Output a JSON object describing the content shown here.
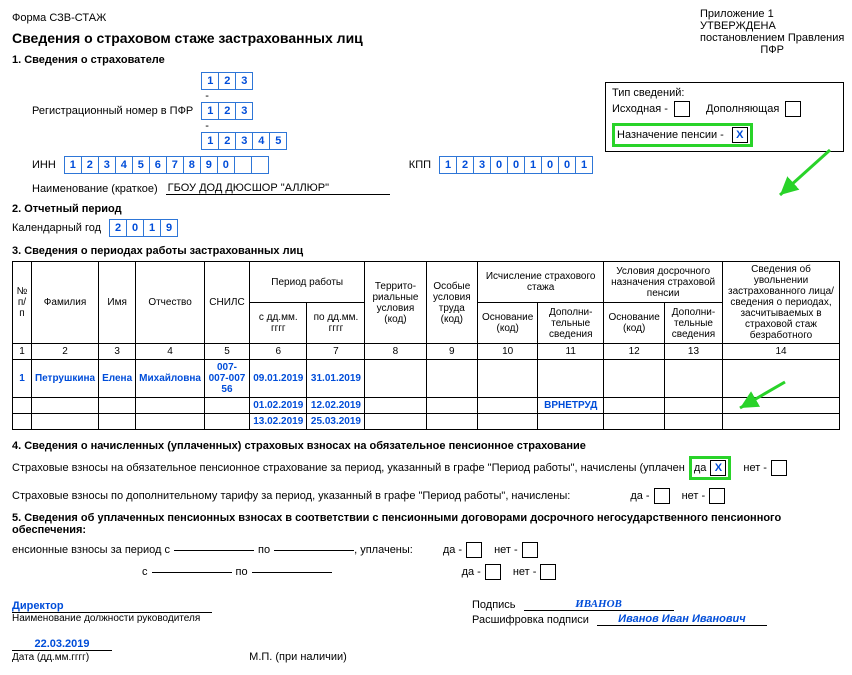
{
  "header": {
    "form": "Форма СЗВ-СТАЖ",
    "title": "Сведения о страховом стаже застрахованных лиц",
    "appendix": "Приложение 1",
    "approved_line1": "УТВЕРЖДЕНА",
    "approved_line2": "постановлением Правления",
    "approved_line3": "ПФР"
  },
  "section1": {
    "title": "1. Сведения о страхователе",
    "reg_label": "Регистрационный номер в ПФР",
    "reg_parts": [
      [
        "1",
        "2",
        "3"
      ],
      [
        "1",
        "2",
        "3"
      ],
      [
        "1",
        "2",
        "3",
        "4",
        "5"
      ]
    ],
    "inn_label": "ИНН",
    "inn": [
      "1",
      "2",
      "3",
      "4",
      "5",
      "6",
      "7",
      "8",
      "9",
      "0",
      "",
      ""
    ],
    "kpp_label": "КПП",
    "kpp": [
      "1",
      "2",
      "3",
      "0",
      "0",
      "1",
      "0",
      "0",
      "1"
    ],
    "name_label": "Наименование (краткое)",
    "name_value": "ГБОУ ДОД ДЮСШОР \"АЛЛЮР\""
  },
  "tip": {
    "title": "Тип сведений:",
    "iskh": "Исходная -",
    "dop": "Дополняющая",
    "pens": "Назначение пенсии  -",
    "pens_mark": "X"
  },
  "section2": {
    "title": "2. Отчетный период",
    "year_label": "Календарный год",
    "year": [
      "2",
      "0",
      "1",
      "9"
    ]
  },
  "section3": {
    "title": "3. Сведения о периодах работы застрахованных лиц",
    "headers": {
      "num": "№ п/п",
      "fam": "Фамилия",
      "name": "Имя",
      "otch": "Отчество",
      "snils": "СНИЛС",
      "period": "Период работы",
      "from": "с дд.мм. гггг",
      "to": "по дд.мм. гггг",
      "terr": "Террито- риальные условия (код)",
      "spec": "Особые условия труда (код)",
      "isch": "Исчисление страхового стажа",
      "early": "Условия досрочного назначения страховой пенсии",
      "osn": "Основание (код)",
      "dop": "Дополни- тельные сведения",
      "info": "Сведения об увольнении застрахованного лица/ сведения о периодах, засчитываемых в страховой стаж безработного"
    },
    "colnums": [
      "1",
      "2",
      "3",
      "4",
      "5",
      "6",
      "7",
      "8",
      "9",
      "10",
      "11",
      "12",
      "13",
      "14"
    ],
    "rows": [
      {
        "n": "1",
        "fam": "Петрушкина",
        "name": "Елена",
        "otch": "Михайловна",
        "snils": "007-007-007 56",
        "from": "09.01.2019",
        "to": "31.01.2019",
        "c11": ""
      },
      {
        "n": "",
        "fam": "",
        "name": "",
        "otch": "",
        "snils": "",
        "from": "01.02.2019",
        "to": "12.02.2019",
        "c11": "ВРНЕТРУД"
      },
      {
        "n": "",
        "fam": "",
        "name": "",
        "otch": "",
        "snils": "",
        "from": "13.02.2019",
        "to": "25.03.2019",
        "c11": ""
      }
    ]
  },
  "section4": {
    "title": "4. Сведения о начисленных (уплаченных) страховых взносах на обязательное пенсионное страхование",
    "line1_a": "Страховые взносы на обязательное пенсионное страхование за период, указанный в графе \"Период работы\", начислены (уплачен",
    "line1_b": "да",
    "line1_mark": "X",
    "line1_net": "нет -",
    "line2": "Страховые взносы по дополнительному тарифу за период, указанный в графе \"Период работы\", начислены:",
    "da": "да -",
    "net": "нет -"
  },
  "section5": {
    "title": "5. Сведения об уплаченных пенсионных взносах в соответствии с пенсионными договорами досрочного негосударственного пенсионного обеспечения:",
    "line": "енсионные взносы за период с",
    "po": "по",
    "upl": ", уплачены:",
    "da": "да -",
    "net": "нет -",
    "s": "с"
  },
  "footer": {
    "director": "Директор",
    "director_pos": "Наименование должности руководителя",
    "sign": "Подпись",
    "sig_val": "ИВАНОВ",
    "decode": "Расшифровка подписи",
    "decode_val": "Иванов Иван Иванович",
    "date": "22.03.2019",
    "date_label": "Дата (дд.мм.гггг)",
    "mp": "М.П. (при наличии)"
  }
}
